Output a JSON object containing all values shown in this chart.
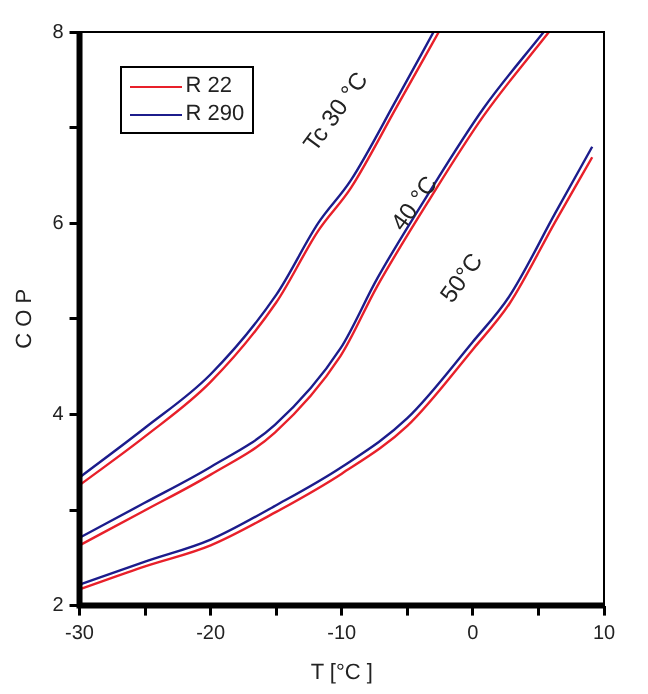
{
  "chart_data": {
    "type": "line",
    "xlabel": "T [°C ]",
    "ylabel": "C O P",
    "xlim": [
      -30,
      10
    ],
    "xticks": [
      -30,
      {
        "value": -25,
        "label": null
      },
      -20,
      {
        "value": -15,
        "label": null
      },
      -10,
      {
        "value": -5,
        "label": null
      },
      0,
      {
        "value": 5,
        "label": null
      },
      10
    ],
    "ylim": [
      2,
      8
    ],
    "yticks": [
      2,
      {
        "value": 3,
        "label": null
      },
      4,
      {
        "value": 5,
        "label": null
      },
      6,
      {
        "value": 7,
        "label": null
      },
      8
    ],
    "grid": false,
    "legend": "top left",
    "marker": "none",
    "line_style": "solid",
    "series": [
      {
        "name": "R 22",
        "color": "#e8202a",
        "x": [
          -30,
          -25,
          -20,
          -15,
          -11.8,
          -9.3,
          -5.8,
          -2.6
        ],
        "values": [
          3.26,
          3.77,
          4.34,
          5.17,
          5.92,
          6.37,
          7.22,
          8.0
        ]
      },
      {
        "name": "R 290",
        "color": "#1c1c8c",
        "x": [
          -30,
          -25,
          -20,
          -15,
          -11.8,
          -9.3,
          -5.8,
          -3.0
        ],
        "values": [
          3.34,
          3.86,
          4.42,
          5.25,
          6.0,
          6.45,
          7.3,
          8.0
        ]
      },
      {
        "color": "#e8202a",
        "x": [
          -30,
          -25.1,
          -20,
          -15.1,
          -10.1,
          -7.3,
          -3.3,
          0.8,
          5.8
        ],
        "values": [
          2.63,
          2.99,
          3.37,
          3.81,
          4.61,
          5.34,
          6.25,
          7.12,
          8.0
        ]
      },
      {
        "color": "#1c1c8c",
        "x": [
          -30,
          -25.1,
          -20,
          -15.1,
          -10.1,
          -7.3,
          -3.3,
          0.8,
          5.4
        ],
        "values": [
          2.71,
          3.07,
          3.45,
          3.89,
          4.69,
          5.42,
          6.33,
          7.2,
          8.0
        ]
      },
      {
        "color": "#e8202a",
        "x": [
          -30,
          -25,
          -20,
          -15,
          -10,
          -5,
          0,
          2.8,
          6.3,
          9.1
        ],
        "values": [
          2.17,
          2.41,
          2.63,
          2.98,
          3.38,
          3.88,
          4.68,
          5.16,
          6.02,
          6.69
        ]
      },
      {
        "color": "#1c1c8c",
        "x": [
          -30,
          -25,
          -20,
          -15,
          -10,
          -5,
          0,
          2.8,
          6.3,
          9.1
        ],
        "values": [
          2.22,
          2.46,
          2.69,
          3.05,
          3.45,
          3.96,
          4.76,
          5.24,
          6.11,
          6.8
        ]
      }
    ],
    "annotations": [
      "Tc 30 °C",
      "40 °C",
      "50°C"
    ]
  }
}
